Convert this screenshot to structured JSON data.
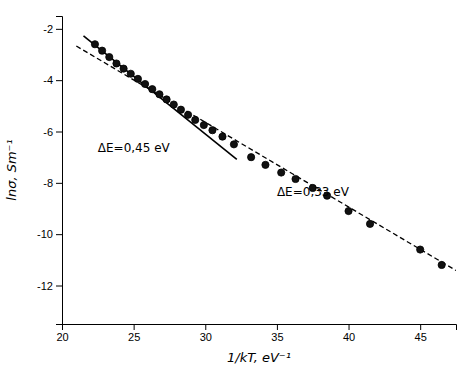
{
  "chart_data": {
    "type": "scatter",
    "xlabel": "1/kT, eV⁻¹",
    "ylabel": "lnσ, Sm⁻¹",
    "xlim": [
      20,
      47.5
    ],
    "ylim": [
      -13.5,
      -1.5
    ],
    "xticks": [
      20,
      25,
      30,
      35,
      40,
      45
    ],
    "yticks": [
      -2,
      -4,
      -6,
      -8,
      -10,
      -12
    ],
    "grid": false,
    "series": [
      {
        "type": "line",
        "line_style": "dashed",
        "color": "#000000",
        "x": [
          21.0,
          47.5
        ],
        "values": [
          -2.67,
          -11.415
        ]
      },
      {
        "type": "line",
        "line_style": "solid",
        "color": "#000000",
        "x": [
          21.5,
          32.2
        ],
        "values": [
          -2.275,
          -7.09
        ]
      },
      {
        "type": "scatter",
        "marker": "circle",
        "color": "#111111",
        "x": [
          22.3,
          22.8,
          23.3,
          23.8,
          24.3,
          24.8,
          25.3,
          25.8,
          26.3,
          26.8,
          27.3,
          27.8,
          28.3,
          28.8,
          29.3,
          29.9,
          30.5,
          31.2,
          32.0,
          33.2,
          34.2,
          35.3,
          36.3,
          37.5,
          38.5,
          40.0,
          41.5,
          45.0,
          46.5
        ],
        "values": [
          -2.6,
          -2.85,
          -3.1,
          -3.35,
          -3.55,
          -3.75,
          -3.95,
          -4.15,
          -4.35,
          -4.55,
          -4.75,
          -4.95,
          -5.15,
          -5.35,
          -5.55,
          -5.75,
          -5.95,
          -6.2,
          -6.5,
          -7.0,
          -7.3,
          -7.6,
          -7.85,
          -8.2,
          -8.5,
          -9.1,
          -9.6,
          -10.6,
          -11.2
        ]
      }
    ],
    "annotations": [
      {
        "text": "ΔE=0,45 eV",
        "x": 22.5,
        "y": -6.8
      },
      {
        "text": "ΔE=0,33 eV",
        "x": 35.0,
        "y": -8.5
      }
    ]
  }
}
